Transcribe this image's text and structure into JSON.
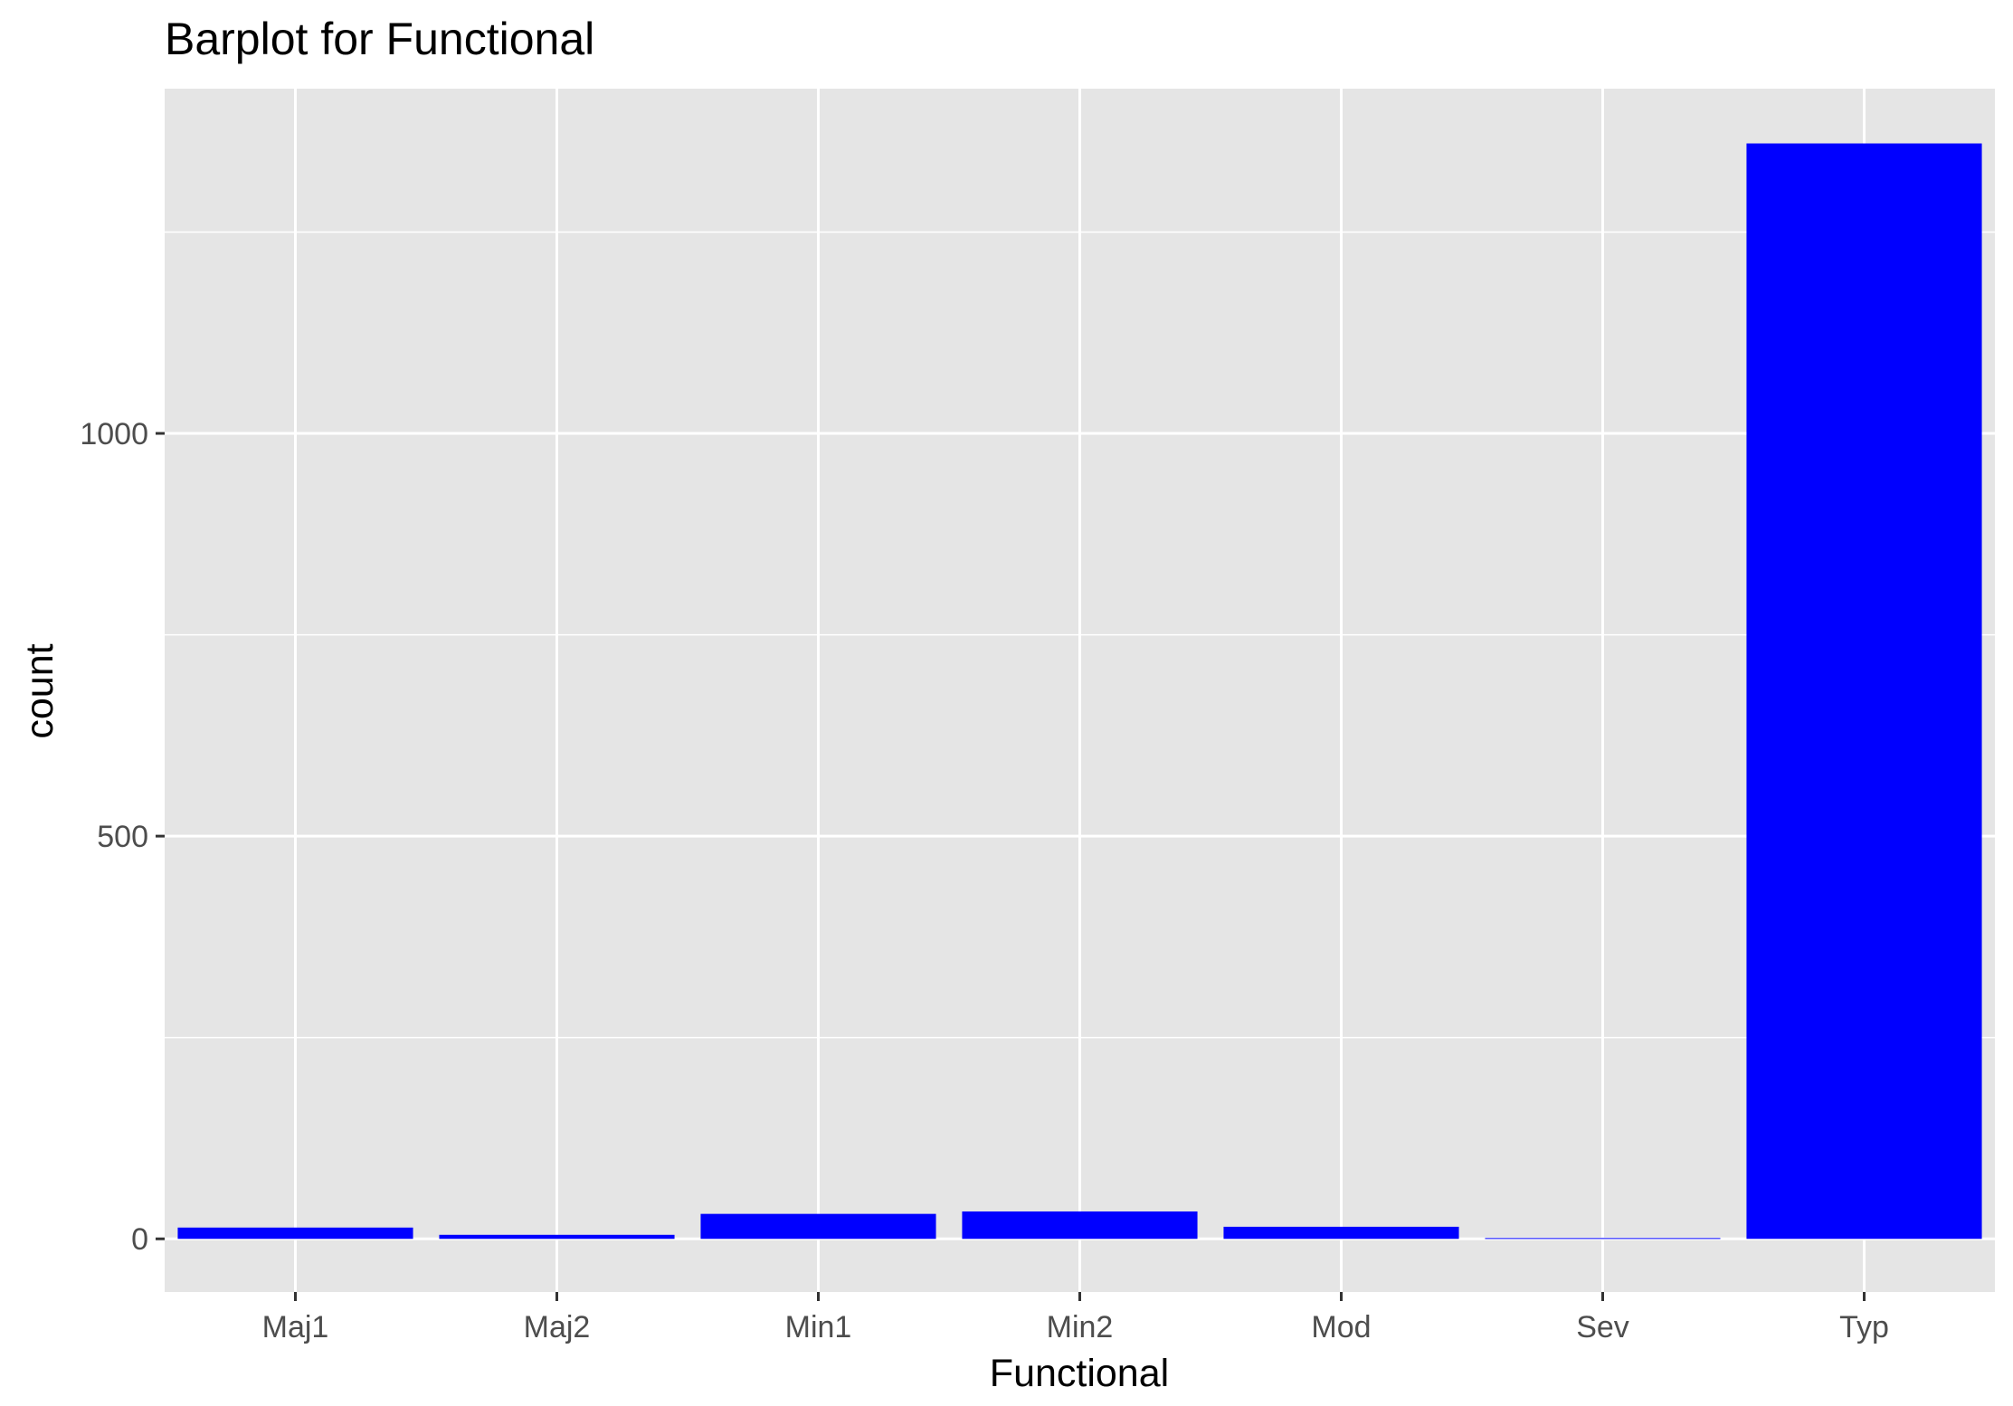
{
  "chart_data": {
    "type": "bar",
    "title": "Barplot for Functional",
    "xlabel": "Functional",
    "ylabel": "count",
    "categories": [
      "Maj1",
      "Maj2",
      "Min1",
      "Min2",
      "Mod",
      "Sev",
      "Typ"
    ],
    "values": [
      14,
      5,
      31,
      34,
      15,
      1,
      1360
    ],
    "ylim": [
      -66,
      1428
    ],
    "yticks": [
      0,
      500,
      1000
    ],
    "yticks_labels": [
      "0",
      "500",
      "1000"
    ],
    "grid": true,
    "bar_color": "#0000ff",
    "panel_color": "#e5e5e5",
    "grid_color": "#ffffff"
  }
}
